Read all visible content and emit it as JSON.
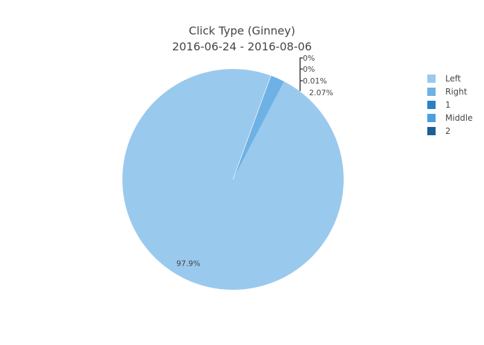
{
  "chart_data": {
    "type": "pie",
    "title": "Click Type (Ginney)",
    "subtitle": "2016-06-24 - 2016-08-06",
    "slices": [
      {
        "name": "Left",
        "value": 97.92,
        "label": "97.9%",
        "color": "#9ac9ee"
      },
      {
        "name": "Right",
        "value": 2.07,
        "label": "2.07%",
        "color": "#6eb1e4"
      },
      {
        "name": "1",
        "value": 0.005,
        "label": "0.01%",
        "color": "#2a80c8"
      },
      {
        "name": "Middle",
        "value": 0.003,
        "label": "0%",
        "color": "#4aa0df"
      },
      {
        "name": "2",
        "value": 0.002,
        "label": "0%",
        "color": "#1d5f92"
      }
    ],
    "legend_position": "right"
  }
}
